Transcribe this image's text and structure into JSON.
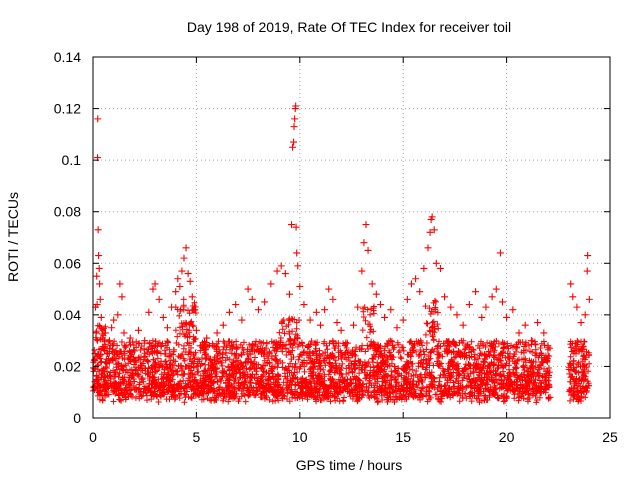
{
  "chart_data": {
    "type": "scatter",
    "title": "Day 198 of 2019, Rate Of TEC Index for receiver toil",
    "xlabel": "GPS time / hours",
    "ylabel": "ROTI / TECUs",
    "xlim": [
      0,
      25
    ],
    "ylim": [
      0,
      0.14
    ],
    "x_ticks": [
      0,
      5,
      10,
      15,
      20,
      25
    ],
    "x_tick_labels": [
      "0",
      "5",
      "10",
      "15",
      "20",
      "25"
    ],
    "y_ticks": [
      0,
      0.02,
      0.04,
      0.06,
      0.08,
      0.1,
      0.12,
      0.14
    ],
    "y_tick_labels": [
      "0",
      "0.02",
      "0.04",
      "0.06",
      "0.08",
      "0.1",
      "0.12",
      "0.14"
    ],
    "grid": true,
    "marker": "+",
    "color": "#ff0000",
    "series": [
      {
        "name": "ROTI",
        "points": [
          [
            0.05,
            0.012
          ],
          [
            0.1,
            0.025
          ],
          [
            0.12,
            0.043
          ],
          [
            0.15,
            0.033
          ],
          [
            0.18,
            0.055
          ],
          [
            0.2,
            0.044
          ],
          [
            0.22,
            0.101
          ],
          [
            0.23,
            0.116
          ],
          [
            0.25,
            0.073
          ],
          [
            0.27,
            0.063
          ],
          [
            0.3,
            0.058
          ],
          [
            0.32,
            0.052
          ],
          [
            0.35,
            0.046
          ],
          [
            0.4,
            0.039
          ],
          [
            0.45,
            0.031
          ],
          [
            0.5,
            0.027
          ],
          [
            0.6,
            0.033
          ],
          [
            0.7,
            0.025
          ],
          [
            0.8,
            0.03
          ],
          [
            0.9,
            0.035
          ],
          [
            1.0,
            0.038
          ],
          [
            1.2,
            0.04
          ],
          [
            1.3,
            0.052
          ],
          [
            1.4,
            0.047
          ],
          [
            1.5,
            0.033
          ],
          [
            1.6,
            0.028
          ],
          [
            1.8,
            0.031
          ],
          [
            2.0,
            0.026
          ],
          [
            2.2,
            0.034
          ],
          [
            2.5,
            0.03
          ],
          [
            2.7,
            0.041
          ],
          [
            2.9,
            0.05
          ],
          [
            3.0,
            0.052
          ],
          [
            3.2,
            0.046
          ],
          [
            3.4,
            0.039
          ],
          [
            3.6,
            0.035
          ],
          [
            3.8,
            0.043
          ],
          [
            4.0,
            0.049
          ],
          [
            4.1,
            0.054
          ],
          [
            4.2,
            0.051
          ],
          [
            4.3,
            0.057
          ],
          [
            4.4,
            0.062
          ],
          [
            4.5,
            0.066
          ],
          [
            4.6,
            0.056
          ],
          [
            4.7,
            0.053
          ],
          [
            4.8,
            0.047
          ],
          [
            4.9,
            0.042
          ],
          [
            5.0,
            0.034
          ],
          [
            5.2,
            0.028
          ],
          [
            5.5,
            0.031
          ],
          [
            5.8,
            0.028
          ],
          [
            6.0,
            0.033
          ],
          [
            6.3,
            0.036
          ],
          [
            6.6,
            0.041
          ],
          [
            6.9,
            0.044
          ],
          [
            7.2,
            0.038
          ],
          [
            7.5,
            0.05
          ],
          [
            7.7,
            0.046
          ],
          [
            8.0,
            0.042
          ],
          [
            8.3,
            0.045
          ],
          [
            8.6,
            0.052
          ],
          [
            8.9,
            0.057
          ],
          [
            9.1,
            0.059
          ],
          [
            9.3,
            0.056
          ],
          [
            9.5,
            0.048
          ],
          [
            9.6,
            0.075
          ],
          [
            9.65,
            0.105
          ],
          [
            9.7,
            0.107
          ],
          [
            9.72,
            0.113
          ],
          [
            9.75,
            0.116
          ],
          [
            9.78,
            0.12
          ],
          [
            9.8,
            0.121
          ],
          [
            9.82,
            0.074
          ],
          [
            9.85,
            0.064
          ],
          [
            9.9,
            0.059
          ],
          [
            10.0,
            0.051
          ],
          [
            10.2,
            0.044
          ],
          [
            10.5,
            0.038
          ],
          [
            10.8,
            0.041
          ],
          [
            11.0,
            0.036
          ],
          [
            11.2,
            0.042
          ],
          [
            11.4,
            0.05
          ],
          [
            11.6,
            0.046
          ],
          [
            11.8,
            0.037
          ],
          [
            12.0,
            0.034
          ],
          [
            12.3,
            0.029
          ],
          [
            12.6,
            0.036
          ],
          [
            12.8,
            0.043
          ],
          [
            13.0,
            0.057
          ],
          [
            13.1,
            0.068
          ],
          [
            13.2,
            0.075
          ],
          [
            13.3,
            0.065
          ],
          [
            13.5,
            0.052
          ],
          [
            13.7,
            0.048
          ],
          [
            13.9,
            0.044
          ],
          [
            14.1,
            0.039
          ],
          [
            14.4,
            0.042
          ],
          [
            14.7,
            0.035
          ],
          [
            15.0,
            0.038
          ],
          [
            15.2,
            0.046
          ],
          [
            15.4,
            0.052
          ],
          [
            15.6,
            0.054
          ],
          [
            15.8,
            0.049
          ],
          [
            16.0,
            0.058
          ],
          [
            16.2,
            0.066
          ],
          [
            16.3,
            0.072
          ],
          [
            16.35,
            0.077
          ],
          [
            16.4,
            0.078
          ],
          [
            16.5,
            0.073
          ],
          [
            16.6,
            0.06
          ],
          [
            16.8,
            0.058
          ],
          [
            17.0,
            0.047
          ],
          [
            17.3,
            0.043
          ],
          [
            17.6,
            0.04
          ],
          [
            17.9,
            0.036
          ],
          [
            18.2,
            0.044
          ],
          [
            18.5,
            0.049
          ],
          [
            18.8,
            0.039
          ],
          [
            19.0,
            0.043
          ],
          [
            19.3,
            0.047
          ],
          [
            19.5,
            0.05
          ],
          [
            19.7,
            0.064
          ],
          [
            19.8,
            0.045
          ],
          [
            20.0,
            0.039
          ],
          [
            20.3,
            0.042
          ],
          [
            20.6,
            0.033
          ],
          [
            20.9,
            0.036
          ],
          [
            21.2,
            0.03
          ],
          [
            21.5,
            0.037
          ],
          [
            21.8,
            0.033
          ],
          [
            22.0,
            0.028
          ],
          [
            22.05,
            0.012
          ],
          [
            22.1,
            0.008
          ],
          [
            23.1,
            0.052
          ],
          [
            23.2,
            0.047
          ],
          [
            23.4,
            0.043
          ],
          [
            23.6,
            0.037
          ],
          [
            23.8,
            0.04
          ],
          [
            23.9,
            0.057
          ],
          [
            23.92,
            0.063
          ],
          [
            24.0,
            0.046
          ]
        ]
      }
    ]
  }
}
